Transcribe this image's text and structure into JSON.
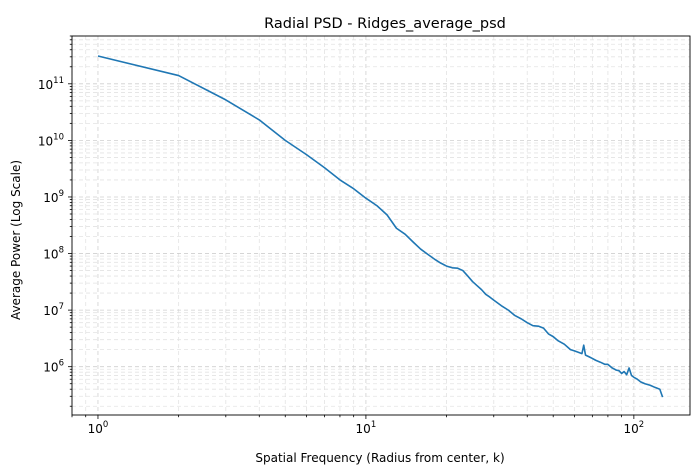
{
  "chart_data": {
    "type": "line",
    "title": "Radial PSD - Ridges_average_psd",
    "xlabel": "Spatial Frequency (Radius from center, k)",
    "ylabel": "Average Power (Log Scale)",
    "xscale": "log",
    "yscale": "log",
    "xlim": [
      0.8,
      162
    ],
    "ylim": [
      140000,
      700000000000
    ],
    "grid": "major and minor, dashed, light gray",
    "legend": "none",
    "line_color": "#1f77b4",
    "x_ticks": [
      {
        "value": 1,
        "base": "10",
        "exp": "0"
      },
      {
        "value": 10,
        "base": "10",
        "exp": "1"
      },
      {
        "value": 100,
        "base": "10",
        "exp": "2"
      }
    ],
    "y_ticks": [
      {
        "value": 1000000,
        "base": "10",
        "exp": "6"
      },
      {
        "value": 10000000,
        "base": "10",
        "exp": "7"
      },
      {
        "value": 100000000,
        "base": "10",
        "exp": "8"
      },
      {
        "value": 1000000000,
        "base": "10",
        "exp": "9"
      },
      {
        "value": 10000000000,
        "base": "10",
        "exp": "10"
      },
      {
        "value": 100000000000,
        "base": "10",
        "exp": "11"
      }
    ],
    "series": [
      {
        "x": [
          1,
          2,
          3,
          4,
          5,
          6,
          7,
          8,
          9,
          10,
          11,
          12,
          13,
          14,
          15,
          16,
          17,
          18,
          19,
          20,
          21,
          22,
          23,
          24,
          25,
          26,
          27,
          28,
          29,
          30,
          32,
          34,
          36,
          38,
          40,
          42,
          44,
          46,
          48,
          50,
          52,
          55,
          58,
          60,
          62,
          64,
          65,
          66,
          68,
          70,
          72,
          75,
          78,
          80,
          83,
          86,
          88,
          90,
          92,
          94,
          96,
          98,
          100,
          103,
          106,
          110,
          115,
          120,
          125,
          128
        ],
        "y": [
          310000000000,
          140000000000,
          52000000000,
          23000000000,
          10000000000,
          5600000000,
          3300000000,
          2000000000,
          1400000000,
          950000000,
          700000000,
          480000000,
          280000000,
          220000000,
          160000000,
          120000000,
          97000000,
          80000000,
          68000000,
          60000000,
          56000000,
          55000000,
          50000000,
          40000000,
          32000000,
          27000000,
          23000000,
          19000000,
          17000000,
          15000000,
          12000000,
          10000000,
          8000000,
          7000000,
          6000000,
          5300000,
          5200000,
          4800000,
          3800000,
          3400000,
          2900000,
          2500000,
          2000000,
          1900000,
          1800000,
          1700000,
          2400000,
          1600000,
          1500000,
          1400000,
          1300000,
          1200000,
          1100000,
          1100000,
          950000,
          870000,
          850000,
          760000,
          820000,
          720000,
          950000,
          700000,
          650000,
          600000,
          540000,
          500000,
          470000,
          430000,
          400000,
          290000
        ]
      }
    ]
  }
}
